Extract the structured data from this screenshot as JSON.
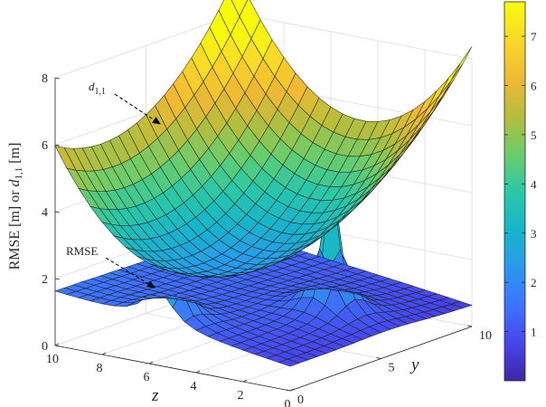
{
  "chart_data": {
    "type": "surface",
    "title": "",
    "xlabel": "y",
    "ylabel": "z",
    "zlabel": "RMSE [m] or d1,1 [m]",
    "xlim": [
      0,
      10
    ],
    "ylim": [
      0,
      10
    ],
    "zlim": [
      0,
      8
    ],
    "x_ticks": [
      "0",
      "5",
      "10"
    ],
    "y_ticks": [
      "10",
      "8",
      "6",
      "4",
      "2",
      "0"
    ],
    "z_ticks": [
      "0",
      "2",
      "4",
      "6",
      "8"
    ],
    "colorbar": {
      "ticks": [
        "1",
        "2",
        "3",
        "4",
        "5",
        "6",
        "7"
      ],
      "range": [
        0,
        7.7
      ]
    },
    "colormap": [
      "#3e26a8",
      "#4747eb",
      "#3e73fe",
      "#2a98ec",
      "#17b5cb",
      "#2bc8a5",
      "#6ccc6a",
      "#b7bd3c",
      "#f1b934",
      "#f8d928",
      "#f9fb0e"
    ],
    "grid": true,
    "series": [
      {
        "name": "d1,1",
        "description": "paraboloid surface, min ~2.3 m near y=3,z=5, up to ~7.7 m at corners",
        "z_corners": {
          "y0_z0": 6.9,
          "y10_z0": 7.0,
          "y0_z10": 6.7,
          "y10_z10": 7.7
        },
        "z_min": 2.3,
        "min_at": {
          "y": 3.0,
          "z": 5.0
        }
      },
      {
        "name": "RMSE",
        "description": "low flat surface (~0.6-1.5 m) with two sharp peaks",
        "base": 0.6,
        "peaks": [
          {
            "y": 0.6,
            "z": 5.6,
            "value": 3.7
          },
          {
            "y": 5.5,
            "z": 2.5,
            "value": 4.9
          }
        ]
      }
    ],
    "annotations": [
      "d1,1",
      "RMSE"
    ]
  },
  "text": {
    "annot_d11": "d",
    "annot_d11_sub": "1,1",
    "annot_rmse": "RMSE",
    "zlabel_main": "RMSE [m] or ",
    "zlabel_d": "d",
    "zlabel_sub": "1,1",
    "zlabel_tail": " [m]",
    "xaxis_letter": "y",
    "yaxis_letter": "z"
  }
}
